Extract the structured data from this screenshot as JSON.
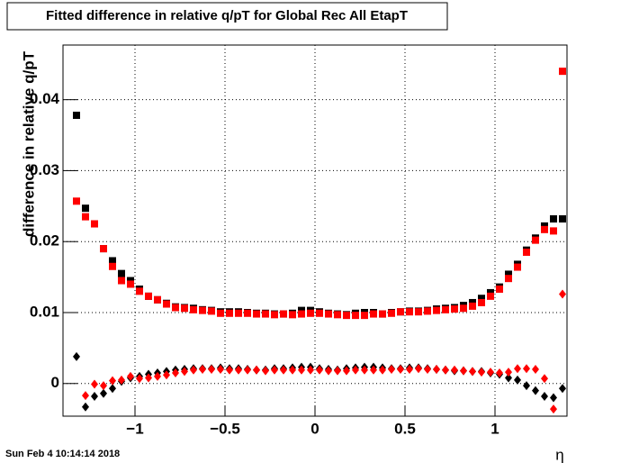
{
  "chart_data": {
    "type": "scatter",
    "title": "Fitted difference in relative q/pT for Global Rec All EtapT",
    "y_label": "difference in relative q/pT",
    "x_label": "η",
    "footer": "Sun Feb  4 10:14:14 2018",
    "grid": true,
    "xlim": [
      -1.4,
      1.4
    ],
    "ylim": [
      -0.0046,
      0.0477
    ],
    "xticks": [
      {
        "value": -1,
        "label": "−1"
      },
      {
        "value": -0.5,
        "label": "−0.5"
      },
      0,
      0.5,
      1
    ],
    "yticks": [
      0,
      0.01,
      0.02,
      0.03,
      0.04
    ],
    "x": [
      -1.325,
      -1.275,
      -1.225,
      -1.175,
      -1.125,
      -1.075,
      -1.025,
      -0.975,
      -0.925,
      -0.875,
      -0.825,
      -0.775,
      -0.725,
      -0.675,
      -0.625,
      -0.575,
      -0.525,
      -0.475,
      -0.425,
      -0.375,
      -0.325,
      -0.275,
      -0.225,
      -0.175,
      -0.125,
      -0.075,
      -0.025,
      0.025,
      0.075,
      0.125,
      0.175,
      0.225,
      0.275,
      0.325,
      0.375,
      0.425,
      0.475,
      0.525,
      0.575,
      0.625,
      0.675,
      0.725,
      0.775,
      0.825,
      0.875,
      0.925,
      0.975,
      1.025,
      1.075,
      1.125,
      1.175,
      1.225,
      1.275,
      1.325,
      1.375
    ],
    "series": [
      {
        "color": "#000000",
        "marker": "square",
        "values": [
          0.0378,
          0.0247,
          0.0225,
          0.019,
          0.0173,
          0.0155,
          0.0145,
          0.0133,
          0.0123,
          0.0118,
          0.0113,
          0.0108,
          0.0107,
          0.0106,
          0.0104,
          0.0103,
          0.0101,
          0.0101,
          0.0101,
          0.01,
          0.0099,
          0.0099,
          0.0098,
          0.0098,
          0.0099,
          0.0103,
          0.0103,
          0.0101,
          0.0099,
          0.0098,
          0.0097,
          0.0099,
          0.01,
          0.01,
          0.0098,
          0.01,
          0.0101,
          0.0102,
          0.0102,
          0.0103,
          0.0105,
          0.0106,
          0.0107,
          0.011,
          0.0114,
          0.012,
          0.0128,
          0.0136,
          0.0154,
          0.0168,
          0.0188,
          0.0205,
          0.0222,
          0.0232,
          0.0232
        ]
      },
      {
        "color": "#ff0000",
        "marker": "square",
        "values": [
          0.0257,
          0.0235,
          0.0225,
          0.019,
          0.0165,
          0.0145,
          0.014,
          0.013,
          0.0123,
          0.0118,
          0.0112,
          0.0107,
          0.0106,
          0.0104,
          0.0103,
          0.0102,
          0.0099,
          0.0099,
          0.0099,
          0.0099,
          0.0098,
          0.0098,
          0.0097,
          0.0098,
          0.0097,
          0.0098,
          0.0099,
          0.0099,
          0.0098,
          0.0097,
          0.0096,
          0.0096,
          0.0096,
          0.0098,
          0.0098,
          0.0099,
          0.0101,
          0.0101,
          0.0101,
          0.0102,
          0.0103,
          0.0104,
          0.0105,
          0.0106,
          0.0109,
          0.0114,
          0.0123,
          0.0133,
          0.0148,
          0.0164,
          0.0185,
          0.0202,
          0.0217,
          0.0215,
          0.044
        ]
      },
      {
        "color": "#000000",
        "marker": "diamond",
        "values": [
          0.0038,
          -0.0033,
          -0.0018,
          -0.0014,
          -0.0007,
          0.0003,
          0.0008,
          0.001,
          0.0013,
          0.0015,
          0.0017,
          0.0019,
          0.002,
          0.0021,
          0.0021,
          0.0021,
          0.0022,
          0.0021,
          0.0021,
          0.002,
          0.0019,
          0.0019,
          0.0021,
          0.0021,
          0.0022,
          0.0023,
          0.0023,
          0.0021,
          0.002,
          0.0019,
          0.0021,
          0.0022,
          0.0023,
          0.0023,
          0.0022,
          0.0021,
          0.0021,
          0.0022,
          0.0022,
          0.0021,
          0.002,
          0.0019,
          0.0018,
          0.0018,
          0.0017,
          0.0017,
          0.0015,
          0.0013,
          0.0008,
          0.0005,
          -0.0003,
          -0.001,
          -0.0018,
          -0.002,
          -0.0007
        ]
      },
      {
        "color": "#ff0000",
        "marker": "diamond",
        "values": [
          null,
          -0.0017,
          -0.0001,
          -0.0003,
          0.0004,
          0.0005,
          0.001,
          0.0007,
          0.0008,
          0.001,
          0.0012,
          0.0015,
          0.0017,
          0.0019,
          0.002,
          0.002,
          0.002,
          0.0019,
          0.0019,
          0.0019,
          0.0019,
          0.0018,
          0.0019,
          0.0019,
          0.0019,
          0.0019,
          0.0019,
          0.0019,
          0.0018,
          0.0018,
          0.0018,
          0.0019,
          0.0019,
          0.0019,
          0.0019,
          0.002,
          0.002,
          0.002,
          0.0021,
          0.002,
          0.002,
          0.0019,
          0.0019,
          0.0018,
          0.0017,
          0.0016,
          0.0016,
          0.0015,
          0.0016,
          0.0021,
          0.0021,
          0.002,
          0.0007,
          -0.0036,
          0.0126
        ]
      }
    ]
  }
}
